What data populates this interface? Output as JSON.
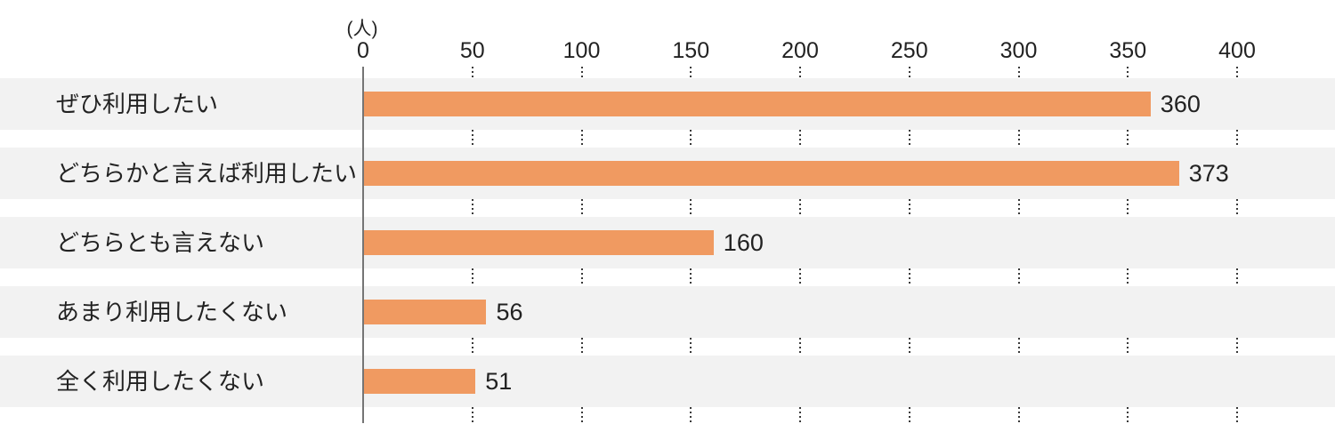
{
  "chart_data": {
    "type": "bar",
    "orientation": "horizontal",
    "title": "",
    "unit_label": "(人)",
    "categories": [
      "ぜひ利用したい",
      "どちらかと言えば利用したい",
      "どちらとも言えない",
      "あまり利用したくない",
      "全く利用したくない"
    ],
    "values": [
      360,
      373,
      160,
      56,
      51
    ],
    "xlim": [
      0,
      400
    ],
    "xticks": [
      0,
      50,
      100,
      150,
      200,
      250,
      300,
      350,
      400
    ],
    "grid": "dotted-vertical-in-row-gaps",
    "legend": "none",
    "colors": {
      "bar": "#F09A61",
      "row_band": "#F2F2F2",
      "axis_line": "#757575",
      "grid_dot": "#3A3A3A",
      "text": "#222222"
    }
  }
}
